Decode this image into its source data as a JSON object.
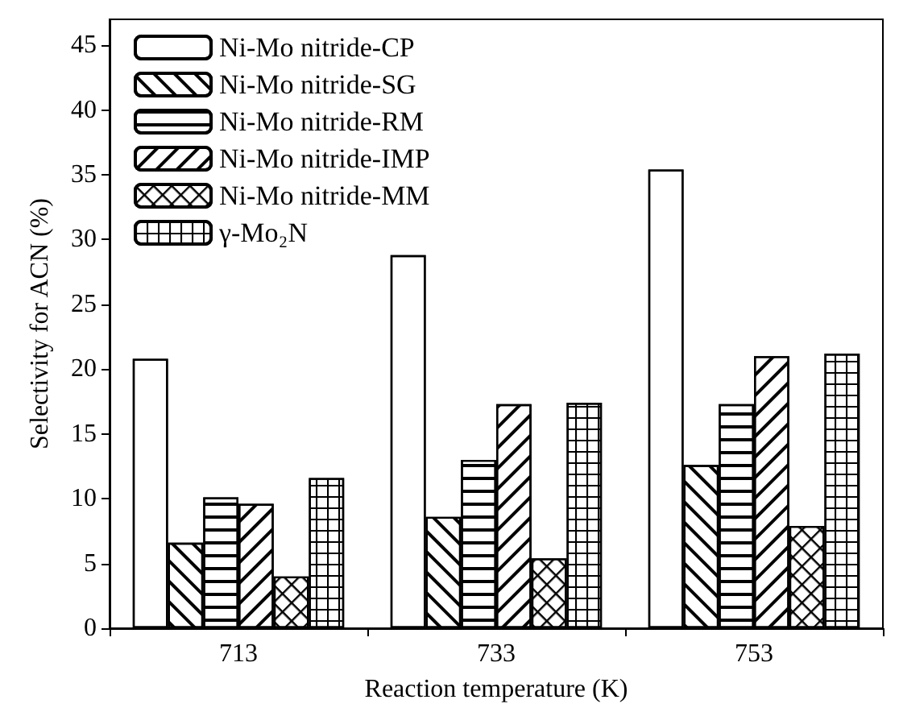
{
  "chart_data": {
    "type": "bar",
    "xlabel": "Reaction temperature (K)",
    "ylabel": "Selectivity for ACN (%)",
    "categories": [
      "713",
      "733",
      "753"
    ],
    "series": [
      {
        "name": "Ni-Mo nitride-CP",
        "color": "#ffffff",
        "values": [
          20.8,
          28.8,
          35.4
        ]
      },
      {
        "name": "Ni-Mo nitride-SG",
        "color": "#ffffff",
        "values": [
          6.6,
          8.6,
          12.6
        ]
      },
      {
        "name": "Ni-Mo nitride-RM",
        "color": "#ffffff",
        "values": [
          10.1,
          13.0,
          17.3
        ]
      },
      {
        "name": "Ni-Mo nitride-IMP",
        "color": "#ffffff",
        "values": [
          9.6,
          17.3,
          21.0
        ]
      },
      {
        "name": "Ni-Mo nitride-MM",
        "color": "#ffffff",
        "values": [
          4.0,
          5.4,
          7.9
        ]
      },
      {
        "name": "γ-Mo₂N",
        "color": "#ffffff",
        "values": [
          11.6,
          17.4,
          21.2
        ]
      }
    ],
    "ylim": [
      0,
      47
    ],
    "yticks": [
      0,
      5,
      10,
      15,
      20,
      25,
      30,
      35,
      40,
      45
    ],
    "grid": false,
    "legend": "top left"
  }
}
